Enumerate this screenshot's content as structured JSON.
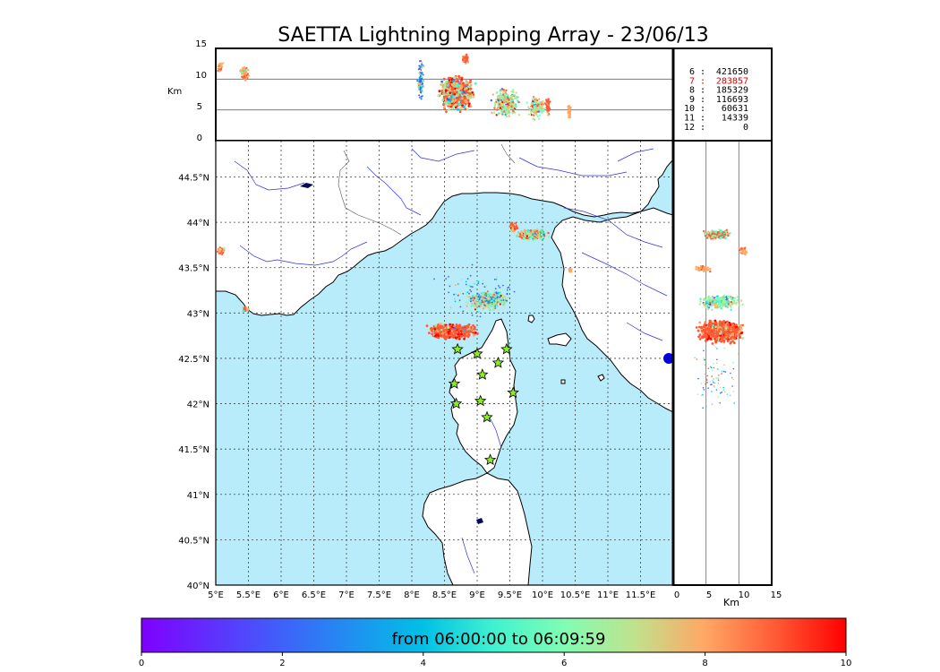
{
  "title": "SAETTA Lightning Mapping Array - 23/06/13",
  "altitude_panel": {
    "ylabel": "Km",
    "yticks": [
      "15",
      "10",
      "5",
      "0"
    ]
  },
  "side_panel": {
    "xlabel": "Km",
    "xticks": [
      "0",
      "5",
      "10",
      "15"
    ]
  },
  "stats": [
    {
      "label": "6",
      "value": "421650",
      "color": "#000000"
    },
    {
      "label": "7",
      "value": "283857",
      "color": "#e00000"
    },
    {
      "label": "8",
      "value": "185329",
      "color": "#000000"
    },
    {
      "label": "9",
      "value": "116693",
      "color": "#000000"
    },
    {
      "label": "10",
      "value": "60631",
      "color": "#000000"
    },
    {
      "label": "11",
      "value": "14339",
      "color": "#000000"
    },
    {
      "label": "12",
      "value": "0",
      "color": "#000000"
    }
  ],
  "map": {
    "lon_ticks": [
      "5°E",
      "5.5°E",
      "6°E",
      "6.5°E",
      "7°E",
      "7.5°E",
      "8°E",
      "8.5°E",
      "9°E",
      "9.5°E",
      "10°E",
      "10.5°E",
      "11°E",
      "11.5°E"
    ],
    "lat_ticks": [
      "44.5°N",
      "44°N",
      "43.5°N",
      "43°N",
      "42.5°N",
      "42°N",
      "41.5°N",
      "41°N",
      "40.5°N",
      "40°N"
    ],
    "sea_color": "#b9ecfa",
    "land_color": "#ffffff",
    "station_color": "#8aec22",
    "stations": [
      [
        8.7,
        42.6
      ],
      [
        9.0,
        42.55
      ],
      [
        9.45,
        42.6
      ],
      [
        9.32,
        42.45
      ],
      [
        9.08,
        42.32
      ],
      [
        8.65,
        42.22
      ],
      [
        8.68,
        42.0
      ],
      [
        9.05,
        42.03
      ],
      [
        9.55,
        42.12
      ],
      [
        9.15,
        41.85
      ],
      [
        9.2,
        41.38
      ]
    ]
  },
  "colorbar": {
    "label": "from 06:00:00 to 06:09:59",
    "ticks": [
      "0",
      "2",
      "4",
      "6",
      "8",
      "10"
    ]
  }
}
